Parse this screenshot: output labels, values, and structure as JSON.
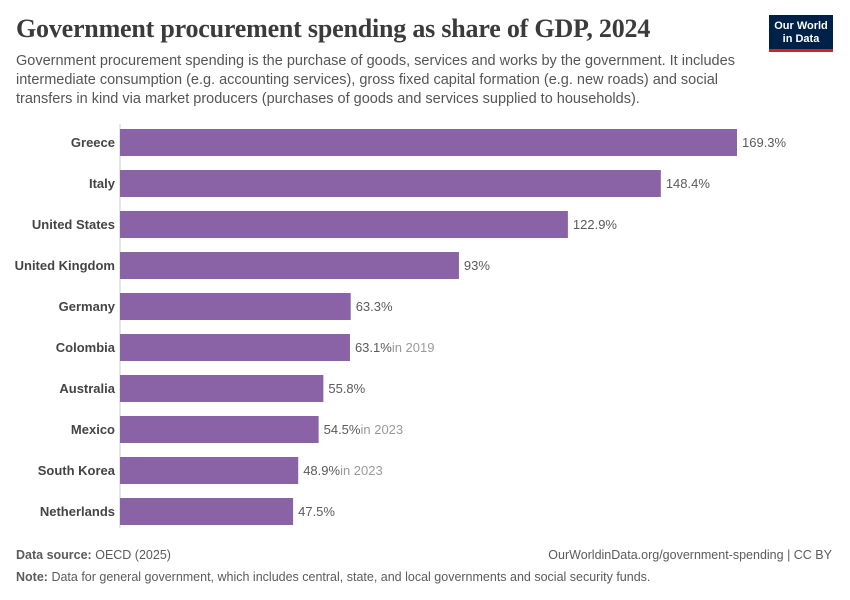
{
  "header": {
    "title": "Government procurement spending as share of GDP, 2024",
    "subtitle": "Government procurement spending is the purchase of goods, services and works by the government. It includes intermediate consumption (e.g. accounting services), gross fixed capital formation (e.g. new roads) and social transfers in kind via market producers (purchases of goods and services supplied to households).",
    "logo_line1": "Our World",
    "logo_line2": "in Data"
  },
  "chart_data": {
    "type": "bar",
    "orientation": "horizontal",
    "unit": "%",
    "bar_color": "#8963a6",
    "categories": [
      "Greece",
      "Italy",
      "United States",
      "United Kingdom",
      "Germany",
      "Colombia",
      "Australia",
      "Mexico",
      "South Korea",
      "Netherlands"
    ],
    "values": [
      169.3,
      148.4,
      122.9,
      93,
      63.3,
      63.1,
      55.8,
      54.5,
      48.9,
      47.5
    ],
    "value_labels": [
      "169.3%",
      "148.4%",
      "122.9%",
      "93%",
      "63.3%",
      "63.1%",
      "55.8%",
      "54.5%",
      "48.9%",
      "47.5%"
    ],
    "year_notes": [
      "",
      "",
      "",
      "",
      "",
      "in 2019",
      "",
      "in 2023",
      "in 2023",
      ""
    ],
    "xlim": [
      0,
      169.3
    ]
  },
  "footer": {
    "source_label": "Data source:",
    "source_text": "OECD (2025)",
    "credit": "OurWorldinData.org/government-spending | CC BY",
    "note_label": "Note:",
    "note_text": "Data for general government, which includes central, state, and local governments and social security funds."
  }
}
